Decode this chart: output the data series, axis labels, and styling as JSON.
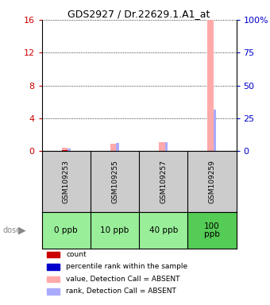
{
  "title": "GDS2927 / Dr.22629.1.A1_at",
  "samples": [
    "GSM109253",
    "GSM109255",
    "GSM109257",
    "GSM109259"
  ],
  "doses": [
    "0 ppb",
    "10 ppb",
    "40 ppb",
    "100\nppb"
  ],
  "left_ylim": [
    0,
    16
  ],
  "right_ylim": [
    0,
    100
  ],
  "left_ticks": [
    0,
    4,
    8,
    12,
    16
  ],
  "right_ticks": [
    0,
    25,
    50,
    75,
    100
  ],
  "right_tick_labels": [
    "0",
    "25",
    "50",
    "75",
    "100%"
  ],
  "count_color": "#cc0000",
  "rank_color": "#0000cc",
  "absent_value_color": "#ffaaaa",
  "absent_rank_color": "#aaaaff",
  "sample_bg_color": "#cccccc",
  "dose_bg_color": "#99ee99",
  "highlight_dose_color": "#55cc55",
  "title_color": "#000000",
  "left_axis_color": "#cc0000",
  "right_axis_color": "#0000cc",
  "absent_value_bars": [
    0.35,
    0.85,
    1.05,
    16.0
  ],
  "absent_rank_bars": [
    0.3,
    0.95,
    1.1,
    5.0
  ],
  "count_bars": [
    0.08,
    0.0,
    0.0,
    0.0
  ],
  "legend_items": [
    {
      "color": "#cc0000",
      "label": "count"
    },
    {
      "color": "#0000cc",
      "label": "percentile rank within the sample"
    },
    {
      "color": "#ffaaaa",
      "label": "value, Detection Call = ABSENT"
    },
    {
      "color": "#aaaaff",
      "label": "rank, Detection Call = ABSENT"
    }
  ]
}
